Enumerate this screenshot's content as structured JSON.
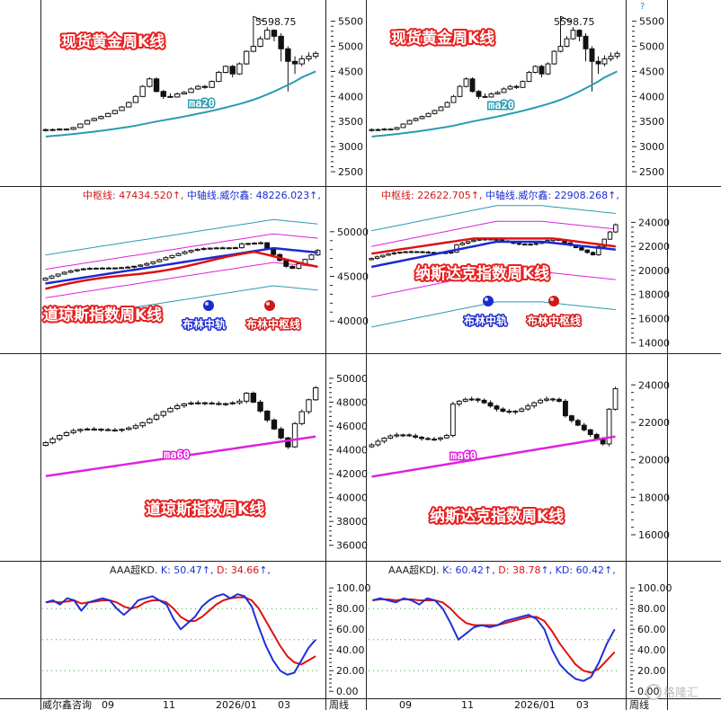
{
  "chart_data": [
    {
      "type": "candlestick",
      "title": "现货黄金周K线",
      "panel": "top-left",
      "yticks": [
        2500,
        3000,
        3500,
        4000,
        4500,
        5000,
        5500
      ],
      "ylim": [
        2250,
        5780
      ],
      "peak_label": "5598.75",
      "ma_label": "ma20",
      "candles": [
        [
          3320,
          3340,
          3300,
          3360
        ],
        [
          3340,
          3335,
          3310,
          3360
        ],
        [
          3335,
          3350,
          3320,
          3370
        ],
        [
          3350,
          3345,
          3325,
          3365
        ],
        [
          3345,
          3380,
          3330,
          3395
        ],
        [
          3380,
          3450,
          3370,
          3465
        ],
        [
          3450,
          3520,
          3440,
          3540
        ],
        [
          3520,
          3560,
          3505,
          3580
        ],
        [
          3560,
          3600,
          3545,
          3620
        ],
        [
          3600,
          3660,
          3590,
          3680
        ],
        [
          3660,
          3720,
          3640,
          3735
        ],
        [
          3720,
          3790,
          3710,
          3810
        ],
        [
          3790,
          3880,
          3780,
          3900
        ],
        [
          3880,
          4000,
          3870,
          4030
        ],
        [
          4000,
          4200,
          3985,
          4230
        ],
        [
          4200,
          4350,
          4180,
          4380
        ],
        [
          4350,
          4100,
          4080,
          4380
        ],
        [
          4100,
          4000,
          3950,
          4130
        ],
        [
          4000,
          3990,
          3970,
          4060
        ],
        [
          3990,
          4050,
          3975,
          4080
        ],
        [
          4050,
          4080,
          4040,
          4110
        ],
        [
          4080,
          4150,
          4070,
          4180
        ],
        [
          4150,
          4200,
          4130,
          4230
        ],
        [
          4200,
          4180,
          4150,
          4230
        ],
        [
          4180,
          4300,
          4170,
          4320
        ],
        [
          4300,
          4480,
          4285,
          4510
        ],
        [
          4480,
          4600,
          4460,
          4620
        ],
        [
          4600,
          4450,
          4380,
          4630
        ],
        [
          4450,
          4650,
          4430,
          4680
        ],
        [
          4650,
          4900,
          4630,
          4920
        ],
        [
          4900,
          5000,
          4880,
          5600
        ],
        [
          5000,
          5150,
          4980,
          5200
        ],
        [
          5150,
          5320,
          5130,
          5380
        ],
        [
          5320,
          5200,
          5100,
          5340
        ],
        [
          5200,
          4950,
          4700,
          5260
        ],
        [
          4950,
          4700,
          4100,
          5000
        ],
        [
          4700,
          4650,
          4450,
          4800
        ],
        [
          4650,
          4750,
          4600,
          4820
        ],
        [
          4750,
          4800,
          4700,
          4880
        ],
        [
          4800,
          4860,
          4750,
          4900
        ]
      ],
      "ma20": [
        3200,
        3212,
        3225,
        3238,
        3252,
        3266,
        3282,
        3298,
        3316,
        3334,
        3353,
        3373,
        3395,
        3418,
        3445,
        3474,
        3500,
        3525,
        3550,
        3575,
        3600,
        3628,
        3656,
        3684,
        3714,
        3746,
        3780,
        3814,
        3850,
        3890,
        3935,
        3985,
        4040,
        4100,
        4165,
        4230,
        4300,
        4380,
        4440,
        4500
      ]
    },
    {
      "type": "candlestick",
      "title": "现货黄金周K线",
      "panel": "top-right",
      "yticks": [
        2500,
        3000,
        3500,
        4000,
        4500,
        5000,
        5500
      ],
      "ylim": [
        2250,
        5780
      ],
      "peak_label": "5598.75",
      "ma_label": "ma20",
      "candles": "same-as-top-left"
    },
    {
      "type": "candlestick-bollinger",
      "panel": "mid-left",
      "legend_mid_label": "中枢线: ",
      "legend_mid_value": "47434.520",
      "legend_upper_label": "中轴线.威尔鑫: ",
      "legend_upper_value": "48226.023",
      "yticks": [
        40000,
        45000,
        50000
      ],
      "ylim": [
        36500,
        53200
      ],
      "boll_upper_label": "布林中轨",
      "boll_mid_label": "布林中枢线",
      "title": "道琼斯指数周K线"
    },
    {
      "type": "candlestick-bollinger",
      "panel": "mid-right",
      "legend_mid_label": "中枢线: ",
      "legend_mid_value": "22622.705",
      "legend_upper_label": "中轴线.威尔鑫: ",
      "legend_upper_value": "22908.268",
      "yticks": [
        14000,
        16000,
        18000,
        20000,
        22000,
        24000
      ],
      "ylim": [
        13200,
        25600
      ],
      "boll_upper_label": "布林中轨",
      "boll_mid_label": "布林中枢线",
      "title": "纳斯达克指数周K线"
    },
    {
      "type": "candlestick",
      "panel": "lower-left",
      "title": "道琼斯指数周K线",
      "yticks": [
        36000,
        38000,
        40000,
        42000,
        44000,
        46000,
        48000,
        50000
      ],
      "ylim": [
        35000,
        51800
      ],
      "ma_label": "ma60"
    },
    {
      "type": "candlestick",
      "panel": "lower-right",
      "title": "纳斯达克指数周K线",
      "yticks": [
        16000,
        18000,
        20000,
        22000,
        24000
      ],
      "ylim": [
        14800,
        25500
      ],
      "ma_label": "ma60"
    },
    {
      "type": "line",
      "panel": "bottom-left",
      "legend_prefix": "AAA超KD.",
      "series": [
        {
          "name": "K",
          "value": "50.47",
          "color": "#1f2fd8"
        },
        {
          "name": "D",
          "value": "34.66",
          "color": "#e01010"
        }
      ],
      "yticks": [
        "0.00",
        "20.00",
        "40.00",
        "60.00",
        "80.00",
        "100.00"
      ],
      "ylim": [
        -5,
        108
      ],
      "xlabels": [
        "威尔鑫咨询",
        "09",
        "11",
        "2026/01",
        "03",
        "周线"
      ]
    },
    {
      "type": "line",
      "panel": "bottom-right",
      "legend_prefix": "AAA超KDJ.",
      "series": [
        {
          "name": "K",
          "value": "60.42",
          "color": "#1f2fd8"
        },
        {
          "name": "D",
          "value": "38.78",
          "color": "#e01010"
        },
        {
          "name": "KD",
          "value": "60.42",
          "color": "#1f2fd8"
        }
      ],
      "yticks": [
        "0.00",
        "20.00",
        "40.00",
        "60.00",
        "80.00",
        "100.00"
      ],
      "ylim": [
        -5,
        108
      ],
      "xlabels": [
        "09",
        "11",
        "2026/01",
        "03",
        "周线"
      ]
    }
  ],
  "watermark": "格隆汇"
}
